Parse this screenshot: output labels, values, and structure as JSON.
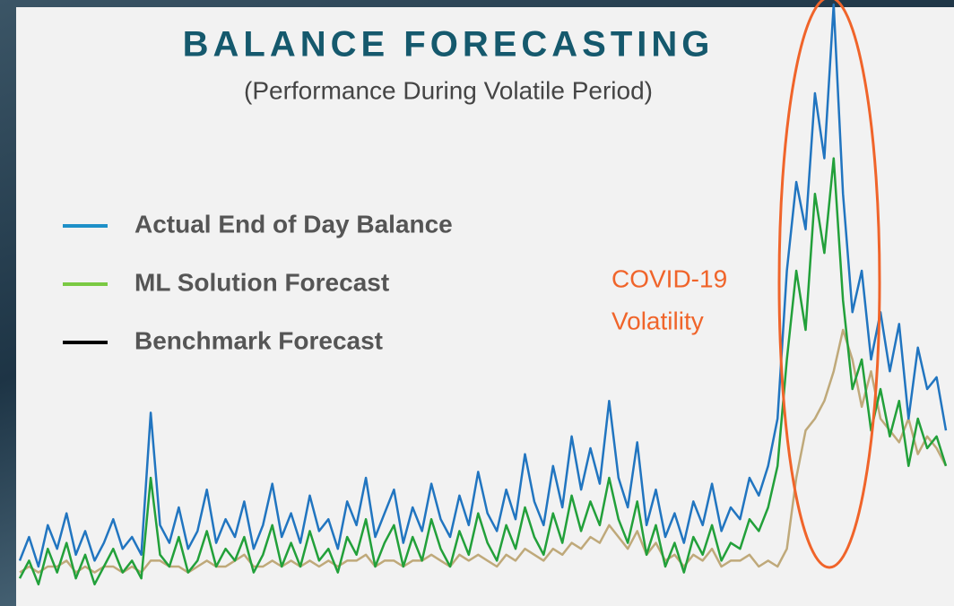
{
  "chart_data": {
    "type": "line",
    "title": "BALANCE FORECASTING",
    "subtitle": "(Performance During Volatile Period)",
    "annotation": [
      "COVID-19",
      "Volatility"
    ],
    "annotation_color": "#f0642a",
    "series": [
      {
        "name": "Actual End of Day Balance",
        "color": "#2175c0",
        "legend_color": "#1e90c8",
        "values": [
          6,
          10,
          5,
          12,
          8,
          14,
          7,
          11,
          6,
          9,
          13,
          8,
          10,
          7,
          31,
          12,
          9,
          15,
          8,
          11,
          18,
          9,
          13,
          10,
          16,
          8,
          12,
          19,
          10,
          14,
          9,
          17,
          11,
          13,
          8,
          16,
          12,
          20,
          10,
          14,
          18,
          9,
          15,
          11,
          19,
          13,
          10,
          17,
          12,
          21,
          14,
          11,
          18,
          13,
          24,
          16,
          12,
          22,
          15,
          27,
          18,
          25,
          19,
          33,
          20,
          15,
          26,
          12,
          18,
          10,
          14,
          9,
          16,
          12,
          19,
          11,
          15,
          13,
          20,
          17,
          22,
          30,
          55,
          70,
          62,
          85,
          74,
          100,
          68,
          48,
          55,
          40,
          48,
          38,
          46,
          30,
          42,
          35,
          37,
          28
        ]
      },
      {
        "name": "ML Solution Forecast",
        "color": "#22a03a",
        "legend_color": "#7ac943",
        "values": [
          3,
          6,
          2,
          8,
          4,
          9,
          3,
          7,
          2,
          5,
          8,
          4,
          6,
          3,
          20,
          7,
          5,
          10,
          4,
          6,
          11,
          5,
          8,
          6,
          10,
          4,
          7,
          12,
          5,
          9,
          5,
          11,
          6,
          8,
          4,
          10,
          7,
          13,
          5,
          9,
          12,
          5,
          10,
          6,
          13,
          8,
          5,
          11,
          7,
          14,
          9,
          6,
          12,
          8,
          15,
          10,
          7,
          14,
          9,
          17,
          11,
          16,
          12,
          20,
          13,
          9,
          16,
          7,
          12,
          5,
          9,
          4,
          10,
          7,
          12,
          6,
          9,
          8,
          13,
          11,
          15,
          22,
          40,
          55,
          45,
          68,
          58,
          74,
          50,
          35,
          40,
          28,
          35,
          27,
          33,
          22,
          30,
          25,
          27,
          22
        ]
      },
      {
        "name": "Benchmark Forecast",
        "color": "#bfa97a",
        "legend_color": "#000000",
        "values": [
          4,
          5,
          4,
          5,
          5,
          6,
          4,
          5,
          4,
          5,
          5,
          4,
          5,
          4,
          6,
          6,
          5,
          5,
          4,
          5,
          6,
          5,
          5,
          6,
          7,
          5,
          5,
          6,
          5,
          6,
          5,
          6,
          5,
          6,
          5,
          6,
          6,
          7,
          5,
          6,
          6,
          5,
          6,
          6,
          7,
          6,
          5,
          7,
          6,
          7,
          6,
          5,
          7,
          6,
          8,
          7,
          6,
          8,
          7,
          9,
          8,
          10,
          9,
          12,
          10,
          8,
          11,
          7,
          9,
          6,
          7,
          5,
          7,
          6,
          8,
          5,
          6,
          6,
          7,
          5,
          6,
          5,
          8,
          20,
          28,
          30,
          33,
          38,
          45,
          40,
          32,
          38,
          30,
          28,
          26,
          30,
          24,
          27,
          25,
          22
        ]
      }
    ]
  }
}
